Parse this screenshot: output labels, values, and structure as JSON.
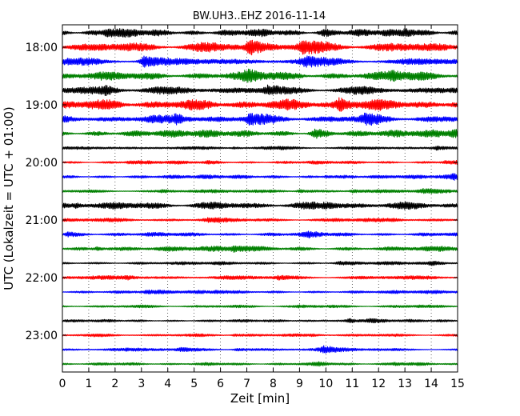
{
  "chart_data": {
    "type": "line",
    "title": "BW.UH3..EHZ 2016-11-14",
    "xlabel": "Zeit  [min]",
    "ylabel": "UTC (Lokalzeit = UTC + 01:00)",
    "xlim": [
      0,
      15
    ],
    "xticks": [
      "0",
      "1",
      "2",
      "3",
      "4",
      "5",
      "6",
      "7",
      "8",
      "9",
      "10",
      "11",
      "12",
      "13",
      "14",
      "15"
    ],
    "yticks": [
      "18:00",
      "19:00",
      "20:00",
      "21:00",
      "22:00",
      "23:00"
    ],
    "grid": "vertical dotted lines at each minute",
    "trace_start": "17:45",
    "trace_interval_minutes": 15,
    "trace_colors": [
      "#000000",
      "#ff0000",
      "#0000ff",
      "#008000"
    ],
    "traces": [
      {
        "start": "17:45",
        "color": "#000000",
        "amplitude": 0.55,
        "events": [
          [
            1.7,
            0.9
          ],
          [
            9.9,
            0.6
          ],
          [
            13.0,
            0.8
          ]
        ]
      },
      {
        "start": "18:00",
        "color": "#ff0000",
        "amplitude": 0.75,
        "events": [
          [
            7.1,
            1.2
          ],
          [
            9.1,
            0.8
          ]
        ]
      },
      {
        "start": "18:15",
        "color": "#0000ff",
        "amplitude": 0.55,
        "events": [
          [
            3.1,
            1.3
          ],
          [
            9.2,
            0.9
          ]
        ]
      },
      {
        "start": "18:30",
        "color": "#008000",
        "amplitude": 0.65,
        "events": [
          [
            7.0,
            0.8
          ],
          [
            12.5,
            0.7
          ]
        ]
      },
      {
        "start": "18:45",
        "color": "#000000",
        "amplitude": 0.6,
        "events": [
          [
            1.6,
            0.7
          ],
          [
            7.8,
            0.7
          ]
        ]
      },
      {
        "start": "19:00",
        "color": "#ff0000",
        "amplitude": 0.8,
        "events": [
          [
            10.5,
            0.9
          ]
        ]
      },
      {
        "start": "19:15",
        "color": "#0000ff",
        "amplitude": 0.6,
        "events": [
          [
            4.3,
            0.9
          ],
          [
            7.1,
            0.9
          ],
          [
            11.5,
            0.8
          ]
        ]
      },
      {
        "start": "19:30",
        "color": "#008000",
        "amplitude": 0.55,
        "events": [
          [
            9.6,
            0.9
          ],
          [
            14.8,
            0.7
          ]
        ]
      },
      {
        "start": "19:45",
        "color": "#000000",
        "amplitude": 0.25,
        "events": [
          [
            14.2,
            0.9
          ],
          [
            6.5,
            0.5
          ]
        ]
      },
      {
        "start": "20:00",
        "color": "#ff0000",
        "amplitude": 0.25,
        "events": [
          [
            2.5,
            0.5
          ],
          [
            5.5,
            0.5
          ],
          [
            14.5,
            0.6
          ]
        ]
      },
      {
        "start": "20:15",
        "color": "#0000ff",
        "amplitude": 0.3,
        "events": [
          [
            10.0,
            0.6
          ],
          [
            14.8,
            1.1
          ]
        ]
      },
      {
        "start": "20:30",
        "color": "#008000",
        "amplitude": 0.25,
        "events": [
          [
            3.8,
            0.7
          ],
          [
            9.0,
            0.8
          ],
          [
            11.0,
            0.8
          ],
          [
            13.7,
            0.9
          ]
        ]
      },
      {
        "start": "20:45",
        "color": "#000000",
        "amplitude": 0.55,
        "events": [
          [
            0.5,
            0.6
          ],
          [
            10.0,
            0.5
          ]
        ]
      },
      {
        "start": "21:00",
        "color": "#ff0000",
        "amplitude": 0.3,
        "events": [
          [
            5.5,
            0.5
          ],
          [
            12.5,
            0.5
          ]
        ]
      },
      {
        "start": "21:15",
        "color": "#0000ff",
        "amplitude": 0.3,
        "events": [
          [
            0.2,
            0.8
          ],
          [
            9.3,
            0.9
          ]
        ]
      },
      {
        "start": "21:30",
        "color": "#008000",
        "amplitude": 0.4,
        "events": [
          [
            6.5,
            0.7
          ],
          [
            1.3,
            0.6
          ]
        ]
      },
      {
        "start": "21:45",
        "color": "#000000",
        "amplitude": 0.25,
        "events": [
          [
            10.5,
            0.6
          ],
          [
            14.0,
            0.7
          ]
        ]
      },
      {
        "start": "22:00",
        "color": "#ff0000",
        "amplitude": 0.3,
        "events": [
          [
            2.4,
            0.8
          ],
          [
            8.2,
            0.6
          ]
        ]
      },
      {
        "start": "22:15",
        "color": "#0000ff",
        "amplitude": 0.25,
        "events": [
          [
            3.2,
            0.6
          ],
          [
            5.8,
            0.7
          ]
        ]
      },
      {
        "start": "22:30",
        "color": "#008000",
        "amplitude": 0.22,
        "events": [
          [
            9.0,
            0.4
          ],
          [
            13.5,
            0.4
          ]
        ]
      },
      {
        "start": "22:45",
        "color": "#000000",
        "amplitude": 0.2,
        "events": [
          [
            10.9,
            1.3
          ],
          [
            11.6,
            0.9
          ],
          [
            9.9,
            0.5
          ]
        ]
      },
      {
        "start": "23:00",
        "color": "#ff0000",
        "amplitude": 0.22,
        "events": [
          [
            6.5,
            0.6
          ],
          [
            9.5,
            0.5
          ]
        ]
      },
      {
        "start": "23:15",
        "color": "#0000ff",
        "amplitude": 0.25,
        "events": [
          [
            6.6,
            0.7
          ],
          [
            9.9,
            1.5
          ],
          [
            4.5,
            0.5
          ]
        ]
      },
      {
        "start": "23:30",
        "color": "#008000",
        "amplitude": 0.22,
        "events": [
          [
            9.7,
            0.7
          ],
          [
            12.6,
            0.5
          ]
        ]
      }
    ]
  }
}
